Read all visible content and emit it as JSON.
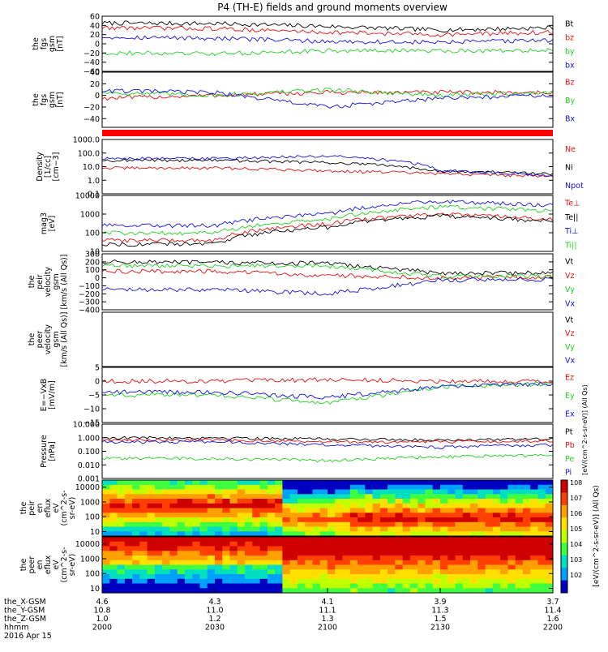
{
  "title": "P4 (TH-E) fields and ground moments overview",
  "colors": {
    "black": "#000000",
    "red": "#e01010",
    "green": "#20d020",
    "blue": "#1010e0"
  },
  "panels": [
    {
      "id": "fgs",
      "ylabel": [
        "the",
        "fgs",
        "gsm",
        "[nT]"
      ],
      "log": false,
      "ylim": [
        -60,
        60
      ],
      "ticks": [
        {
          "v": 60,
          "t": "60"
        },
        {
          "v": 40,
          "t": "40"
        },
        {
          "v": 20,
          "t": "20"
        },
        {
          "v": 0,
          "t": "0"
        },
        {
          "v": -20,
          "t": "−20"
        },
        {
          "v": -40,
          "t": "−40"
        },
        {
          "v": -60,
          "t": "−60"
        }
      ],
      "legend": [
        {
          "t": "Bt",
          "c": "black"
        },
        {
          "t": "bz",
          "c": "red"
        },
        {
          "t": "by",
          "c": "green"
        },
        {
          "t": "bx",
          "c": "blue"
        }
      ]
    },
    {
      "id": "fgs2",
      "ylabel": [
        "the",
        "fgs",
        "gsm",
        "[nT]"
      ],
      "log": false,
      "ylim": [
        -55,
        40
      ],
      "ticks": [
        {
          "v": 40,
          "t": "40"
        },
        {
          "v": 20,
          "t": "20"
        },
        {
          "v": 0,
          "t": "0"
        },
        {
          "v": -20,
          "t": "−20"
        },
        {
          "v": -40,
          "t": "−40"
        }
      ],
      "legend": [
        {
          "t": "Bz",
          "c": "red"
        },
        {
          "t": "By",
          "c": "green"
        },
        {
          "t": "Bx",
          "c": "blue"
        }
      ]
    },
    {
      "id": "density",
      "ylabel": [
        "Density",
        "[1/cc]",
        "[cm−3]"
      ],
      "log": true,
      "ylim": [
        0.1,
        1000
      ],
      "ticks": [
        {
          "v": 1000,
          "t": "1000.0"
        },
        {
          "v": 100,
          "t": "100.0"
        },
        {
          "v": 10,
          "t": "10.0"
        },
        {
          "v": 1,
          "t": "1.0"
        },
        {
          "v": 0.1,
          "t": "0.1"
        }
      ],
      "legend": [
        {
          "t": "Ne",
          "c": "red"
        },
        {
          "t": "Ni",
          "c": "black"
        },
        {
          "t": "Npot",
          "c": "blue"
        }
      ]
    },
    {
      "id": "temp",
      "ylabel": [
        "mag3",
        "[eV]"
      ],
      "log": true,
      "ylim": [
        10,
        10000
      ],
      "ticks": [
        {
          "v": 10000,
          "t": "10000"
        },
        {
          "v": 1000,
          "t": "1000"
        },
        {
          "v": 100,
          "t": "100"
        },
        {
          "v": 10,
          "t": "10"
        }
      ],
      "legend": [
        {
          "t": "Te⊥",
          "c": "red"
        },
        {
          "t": "Te||",
          "c": "black"
        },
        {
          "t": "Ti⊥",
          "c": "blue"
        },
        {
          "t": "Ti||",
          "c": "green"
        }
      ]
    },
    {
      "id": "peir_vel",
      "ylabel": [
        "the",
        "peir",
        "velocity",
        "gsm",
        "[km/s (All Qs)]"
      ],
      "log": false,
      "ylim": [
        -400,
        300
      ],
      "ticks": [
        {
          "v": 300,
          "t": "300"
        },
        {
          "v": 200,
          "t": "200"
        },
        {
          "v": 100,
          "t": "100"
        },
        {
          "v": 0,
          "t": "0"
        },
        {
          "v": -100,
          "t": "−100"
        },
        {
          "v": -200,
          "t": "−200"
        },
        {
          "v": -300,
          "t": "−300"
        },
        {
          "v": -400,
          "t": "−400"
        }
      ],
      "legend": [
        {
          "t": "Vt",
          "c": "black"
        },
        {
          "t": "Vz",
          "c": "red"
        },
        {
          "t": "Vy",
          "c": "green"
        },
        {
          "t": "Vx",
          "c": "blue"
        }
      ]
    },
    {
      "id": "peer_vel",
      "ylabel": [
        "the",
        "peer",
        "velocity",
        "gsm",
        "[km/s (All Qs)]"
      ],
      "log": false,
      "ylim": [
        0,
        1
      ],
      "ticks": [],
      "legend": [
        {
          "t": "Vt",
          "c": "black"
        },
        {
          "t": "Vz",
          "c": "red"
        },
        {
          "t": "Vy",
          "c": "green"
        },
        {
          "t": "Vx",
          "c": "blue"
        }
      ]
    },
    {
      "id": "efield",
      "ylabel": [
        "E=−VxB",
        "[mV/m]"
      ],
      "log": false,
      "ylim": [
        -15,
        5
      ],
      "ticks": [
        {
          "v": 5,
          "t": "5"
        },
        {
          "v": 0,
          "t": "0"
        },
        {
          "v": -5,
          "t": "−5"
        },
        {
          "v": -10,
          "t": "−10"
        },
        {
          "v": -15,
          "t": "−15"
        }
      ],
      "legend": [
        {
          "t": "Ez",
          "c": "red"
        },
        {
          "t": "Ey",
          "c": "green"
        },
        {
          "t": "Ex",
          "c": "blue"
        }
      ]
    },
    {
      "id": "pressure",
      "ylabel": [
        "Pressure",
        "[nPa]"
      ],
      "log": true,
      "ylim": [
        0.001,
        10
      ],
      "ticks": [
        {
          "v": 10,
          "t": "10.000"
        },
        {
          "v": 1,
          "t": "1.000"
        },
        {
          "v": 0.1,
          "t": "0.100"
        },
        {
          "v": 0.01,
          "t": "0.010"
        },
        {
          "v": 0.001,
          "t": "0.001"
        }
      ],
      "legend": [
        {
          "t": "Pt",
          "c": "black"
        },
        {
          "t": "Pb",
          "c": "red"
        },
        {
          "t": "Pe",
          "c": "green"
        },
        {
          "t": "Pi",
          "c": "blue"
        }
      ]
    },
    {
      "id": "peir_en",
      "ylabel": [
        "the",
        "peir",
        "en",
        "eflux",
        "eV",
        "(cm^2-s-",
        "sr-eV)"
      ],
      "log": true,
      "ylim": [
        5,
        30000
      ],
      "spec": "ion",
      "ticks": [
        {
          "v": 10000,
          "t": "10000"
        },
        {
          "v": 1000,
          "t": "1000"
        },
        {
          "v": 100,
          "t": "100"
        },
        {
          "v": 10,
          "t": "10"
        }
      ],
      "legend": []
    },
    {
      "id": "peer_en",
      "ylabel": [
        "the",
        "peer",
        "en",
        "eflux",
        "eV",
        "(cm^2-s-",
        "sr-eV)"
      ],
      "log": true,
      "ylim": [
        5,
        30000
      ],
      "spec": "electron",
      "ticks": [
        {
          "v": 10000,
          "t": "10000"
        },
        {
          "v": 1000,
          "t": "1000"
        },
        {
          "v": 100,
          "t": "100"
        },
        {
          "v": 10,
          "t": "10"
        }
      ],
      "legend": []
    }
  ],
  "colorbar": {
    "label": "[eV/(cm^2-s-sr-eV)] (All Qs)",
    "label_top": "[eV/(cm^2-s-sr-eV)] (All Qs)",
    "ticks": [
      "10^8",
      "10^7",
      "10^6",
      "10^5",
      "10^4",
      "10^3",
      "10^2"
    ]
  },
  "footer": {
    "rows": [
      {
        "label": "the_X-GSM",
        "values": [
          "4.6",
          "4.3",
          "4.1",
          "3.9",
          "3.7"
        ]
      },
      {
        "label": "the_Y-GSM",
        "values": [
          "10.8",
          "11.0",
          "11.1",
          "11.3",
          "11.4"
        ]
      },
      {
        "label": "the_Z-GSM",
        "values": [
          "1.0",
          "1.2",
          "1.3",
          "1.5",
          "1.6"
        ]
      },
      {
        "label": "hhmm",
        "values": [
          "2000",
          "2030",
          "2100",
          "2130",
          "2200"
        ]
      }
    ],
    "date": "2016 Apr 15"
  },
  "chart_data": {
    "type": "line",
    "x": [
      "2000",
      "2030",
      "2100",
      "2130",
      "2200"
    ],
    "xlabel": "hhmm",
    "series": [
      {
        "name": "Bt",
        "panel": "fgs",
        "values": [
          45,
          44,
          38,
          30,
          35
        ]
      },
      {
        "name": "bz",
        "panel": "fgs",
        "values": [
          35,
          33,
          25,
          20,
          25
        ]
      },
      {
        "name": "by",
        "panel": "fgs",
        "values": [
          -20,
          -22,
          -15,
          -15,
          -15
        ]
      },
      {
        "name": "bx",
        "panel": "fgs",
        "values": [
          15,
          12,
          5,
          3,
          8
        ]
      },
      {
        "name": "Bz",
        "panel": "fgs2",
        "values": [
          -5,
          0,
          5,
          5,
          5
        ]
      },
      {
        "name": "By",
        "panel": "fgs2",
        "values": [
          5,
          0,
          10,
          0,
          5
        ]
      },
      {
        "name": "Bx",
        "panel": "fgs2",
        "values": [
          8,
          5,
          -20,
          -5,
          0
        ]
      },
      {
        "name": "Ne",
        "panel": "density",
        "values": [
          8,
          8,
          5,
          3,
          2
        ]
      },
      {
        "name": "Ni",
        "panel": "density",
        "values": [
          30,
          30,
          20,
          5,
          3
        ]
      },
      {
        "name": "Npot",
        "panel": "density",
        "values": [
          40,
          40,
          60,
          5,
          2
        ]
      },
      {
        "name": "Te⊥",
        "panel": "temp",
        "values": [
          40,
          40,
          300,
          1000,
          500
        ]
      },
      {
        "name": "Te||",
        "panel": "temp",
        "values": [
          25,
          25,
          200,
          800,
          400
        ]
      },
      {
        "name": "Ti⊥",
        "panel": "temp",
        "values": [
          250,
          250,
          1000,
          5000,
          3000
        ]
      },
      {
        "name": "Ti||",
        "panel": "temp",
        "values": [
          100,
          100,
          500,
          2500,
          1500
        ]
      },
      {
        "name": "Vt",
        "panel": "peir_vel",
        "values": [
          200,
          190,
          180,
          60,
          60
        ]
      },
      {
        "name": "Vz",
        "panel": "peir_vel",
        "values": [
          80,
          80,
          30,
          0,
          10
        ]
      },
      {
        "name": "Vy",
        "panel": "peir_vel",
        "values": [
          150,
          150,
          150,
          20,
          20
        ]
      },
      {
        "name": "Vx",
        "panel": "peir_vel",
        "values": [
          -150,
          -150,
          -200,
          -30,
          -20
        ]
      },
      {
        "name": "Ez",
        "panel": "efield",
        "values": [
          0,
          0,
          0.5,
          0,
          0
        ]
      },
      {
        "name": "Ey",
        "panel": "efield",
        "values": [
          -5,
          -5,
          -8,
          -2,
          -1
        ]
      },
      {
        "name": "Ex",
        "panel": "efield",
        "values": [
          -4,
          -4,
          -6,
          -2,
          -1
        ]
      },
      {
        "name": "Pt",
        "panel": "pressure",
        "values": [
          1,
          1,
          0.8,
          0.7,
          0.8
        ]
      },
      {
        "name": "Pb",
        "panel": "pressure",
        "values": [
          0.7,
          0.7,
          0.5,
          0.5,
          0.6
        ]
      },
      {
        "name": "Pe",
        "panel": "pressure",
        "values": [
          0.03,
          0.03,
          0.02,
          0.04,
          0.05
        ]
      },
      {
        "name": "Pi",
        "panel": "pressure",
        "values": [
          0.5,
          0.5,
          0.3,
          0.2,
          0.3
        ]
      }
    ],
    "grid": false,
    "legend_placement": "right"
  }
}
